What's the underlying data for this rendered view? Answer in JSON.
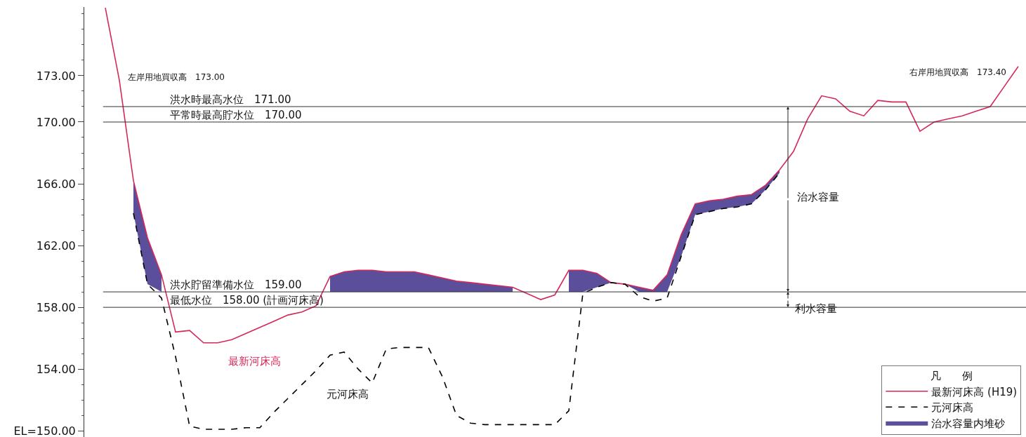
{
  "chart_data": {
    "type": "line",
    "legend_title": "凡　　例",
    "legend": "bottom right",
    "marker": "none",
    "categories": [
      null,
      null,
      null,
      null,
      null,
      null,
      null,
      null,
      null,
      null,
      null,
      null,
      null,
      null,
      null,
      null,
      null,
      null,
      null,
      null,
      null,
      null,
      null,
      null,
      null,
      null,
      null,
      null,
      null,
      null,
      null,
      null,
      null,
      null,
      null,
      null,
      null,
      null,
      null,
      null,
      null,
      null,
      null,
      null,
      null,
      null,
      null,
      null,
      null,
      null,
      null,
      null,
      null,
      null,
      null,
      null,
      null,
      null,
      null,
      null,
      null,
      null,
      null,
      null,
      null,
      null
    ],
    "series": [
      {
        "name": "最新河床高 (H19)",
        "color": "#d62858",
        "line_style": "solid",
        "values": [
          177.4,
          172.7,
          166.2,
          162.5,
          160.1,
          156.4,
          156.5,
          155.7,
          155.7,
          155.9,
          156.3,
          156.7,
          157.1,
          157.5,
          157.7,
          158.1,
          160.0,
          160.3,
          160.4,
          160.4,
          160.3,
          160.3,
          160.3,
          160.1,
          159.9,
          159.7,
          159.6,
          159.5,
          159.4,
          159.3,
          158.9,
          158.5,
          158.8,
          160.4,
          160.4,
          160.2,
          159.6,
          159.5,
          159.3,
          159.1,
          160.1,
          162.7,
          164.7,
          164.9,
          165.0,
          165.2,
          165.3,
          165.9,
          166.9,
          168.1,
          170.2,
          171.7,
          171.5,
          170.7,
          170.4,
          171.4,
          171.3,
          171.3,
          169.4,
          170.0,
          170.2,
          170.4,
          170.7,
          171.0,
          172.3,
          173.6
        ]
      },
      {
        "name": "元河床高",
        "color": "#000000",
        "line_style": "dashed",
        "values": [
          null,
          null,
          164.1,
          159.5,
          158.6,
          154.8,
          150.3,
          150.1,
          150.1,
          150.1,
          150.2,
          150.2,
          151.2,
          152.1,
          153.0,
          153.9,
          154.9,
          155.1,
          154.0,
          153.1,
          155.3,
          155.4,
          155.4,
          155.4,
          153.5,
          151.0,
          150.5,
          150.4,
          150.4,
          150.4,
          150.4,
          150.4,
          150.4,
          151.3,
          158.9,
          159.3,
          159.6,
          159.5,
          158.7,
          158.4,
          158.6,
          161.3,
          164.0,
          164.2,
          164.4,
          164.5,
          164.7,
          165.6,
          166.7,
          null,
          null,
          null,
          null,
          null,
          null,
          null,
          null,
          null,
          null,
          null,
          null,
          null,
          null,
          null,
          null,
          null
        ]
      },
      {
        "name": "治水容量内堆砂",
        "type": "area",
        "color": "#5b4f9b",
        "values": [
          null,
          null,
          166.2,
          162.5,
          160.1,
          null,
          null,
          null,
          null,
          null,
          null,
          null,
          null,
          null,
          null,
          null,
          160.0,
          160.3,
          160.4,
          160.4,
          160.3,
          160.3,
          160.3,
          160.1,
          159.9,
          159.7,
          159.6,
          159.5,
          159.4,
          159.3,
          null,
          null,
          null,
          160.4,
          160.4,
          160.2,
          159.6,
          159.5,
          159.3,
          159.1,
          160.1,
          162.7,
          164.7,
          164.9,
          165.0,
          165.2,
          165.3,
          165.9,
          166.9,
          null,
          null,
          null,
          null,
          null,
          null,
          null,
          null,
          null,
          null,
          null,
          null,
          null,
          null,
          null,
          null,
          null
        ]
      }
    ],
    "ylim": [
      149.6,
      177.45
    ],
    "yticks": [
      {
        "value": 150,
        "label": "EL=150.00"
      },
      {
        "value": 154,
        "label": "154.00"
      },
      {
        "value": 158,
        "label": "158.00"
      },
      {
        "value": 162,
        "label": "162.00"
      },
      {
        "value": 166,
        "label": "166.00"
      },
      {
        "value": 170,
        "label": "170.00"
      },
      {
        "value": 173,
        "label": "173.00"
      }
    ],
    "ref_lines": [
      {
        "axis": "y",
        "value": 171,
        "label": "洪水時最高水位　171.00",
        "color": "#333333"
      },
      {
        "axis": "y",
        "value": 170,
        "label": "平常時最高貯水位　170.00",
        "color": "#333333"
      },
      {
        "axis": "y",
        "value": 159,
        "label": "洪水貯留準備水位　159.00",
        "color": "#333333"
      },
      {
        "axis": "y",
        "value": 158,
        "label": "最低水位　158.00 (計画河床高)",
        "color": "#333333"
      }
    ],
    "annotations": [
      "左岸用地買収高　173.00",
      "右岸用地買収高　173.40",
      "治水容量",
      "利水容量",
      "最新河床高",
      "元河床高"
    ]
  }
}
